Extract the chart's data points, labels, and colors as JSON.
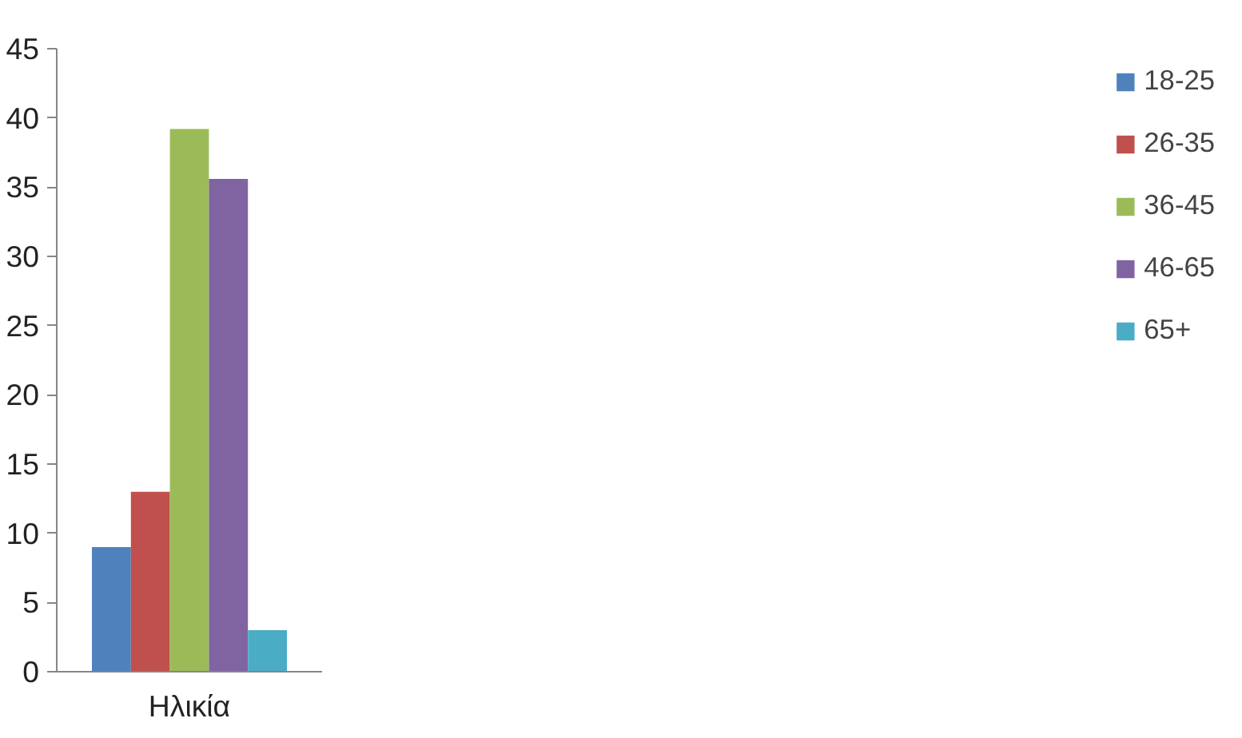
{
  "chart_data": {
    "type": "bar",
    "categories": [
      "Ηλικία"
    ],
    "series": [
      {
        "name": "18-25",
        "color": "#4f81bd",
        "values": [
          9
        ]
      },
      {
        "name": "26-35",
        "color": "#c0504d",
        "values": [
          13
        ]
      },
      {
        "name": "36-45",
        "color": "#9bbb59",
        "values": [
          39.2
        ]
      },
      {
        "name": "46-65",
        "color": "#8064a2",
        "values": [
          35.6
        ]
      },
      {
        "name": "65+",
        "color": "#4bacc6",
        "values": [
          3
        ]
      }
    ],
    "ylim": [
      0,
      45
    ],
    "yticks": [
      0,
      5,
      10,
      15,
      20,
      25,
      30,
      35,
      40,
      45
    ],
    "grid": false,
    "legend": "right"
  }
}
